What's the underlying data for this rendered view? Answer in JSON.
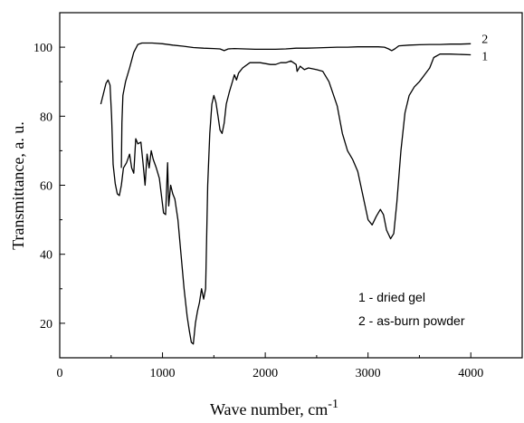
{
  "chart_data": {
    "type": "line",
    "xlabel": "Wave number, cm",
    "xlabel_sup": "-1",
    "ylabel": "Transmittance, a. u.",
    "xlim": [
      0,
      4500
    ],
    "ylim": [
      10,
      110
    ],
    "x_ticks": [
      0,
      1000,
      2000,
      3000,
      4000
    ],
    "x_tick_labels": [
      "0",
      "1000",
      "2000",
      "3000",
      "4000"
    ],
    "y_ticks": [
      20,
      40,
      60,
      80,
      100
    ],
    "y_tick_labels": [
      "20",
      "40",
      "60",
      "80",
      "100"
    ],
    "grid": false,
    "legend": {
      "position": "bottom-right",
      "entries": [
        "1 - dried gel",
        "2 - as-burn powder"
      ]
    },
    "series": [
      {
        "name": "1",
        "label_y": 97.5,
        "points": [
          [
            400,
            83.5
          ],
          [
            450,
            89.5
          ],
          [
            470,
            90.5
          ],
          [
            490,
            89.0
          ],
          [
            505,
            80.0
          ],
          [
            520,
            66.0
          ],
          [
            540,
            60.5
          ],
          [
            560,
            57.5
          ],
          [
            580,
            57.0
          ],
          [
            600,
            60.0
          ],
          [
            620,
            65.0
          ],
          [
            650,
            66.5
          ],
          [
            680,
            69.0
          ],
          [
            700,
            65.0
          ],
          [
            720,
            63.5
          ],
          [
            740,
            73.5
          ],
          [
            760,
            72.0
          ],
          [
            790,
            72.5
          ],
          [
            810,
            66.5
          ],
          [
            830,
            60.0
          ],
          [
            850,
            69.0
          ],
          [
            870,
            65.0
          ],
          [
            890,
            70.0
          ],
          [
            910,
            67.5
          ],
          [
            940,
            65.0
          ],
          [
            970,
            62.0
          ],
          [
            990,
            57.0
          ],
          [
            1010,
            52.0
          ],
          [
            1030,
            51.5
          ],
          [
            1050,
            66.5
          ],
          [
            1060,
            54.0
          ],
          [
            1080,
            60.0
          ],
          [
            1100,
            57.5
          ],
          [
            1120,
            56.0
          ],
          [
            1150,
            50.0
          ],
          [
            1180,
            40.0
          ],
          [
            1210,
            30.0
          ],
          [
            1240,
            22.0
          ],
          [
            1260,
            18.0
          ],
          [
            1280,
            14.5
          ],
          [
            1300,
            14.0
          ],
          [
            1320,
            20.0
          ],
          [
            1340,
            23.5
          ],
          [
            1360,
            26.0
          ],
          [
            1380,
            30.0
          ],
          [
            1400,
            27.0
          ],
          [
            1420,
            30.0
          ],
          [
            1440,
            60.0
          ],
          [
            1460,
            75.0
          ],
          [
            1480,
            83.5
          ],
          [
            1500,
            86.0
          ],
          [
            1520,
            84.0
          ],
          [
            1540,
            80.0
          ],
          [
            1560,
            76.0
          ],
          [
            1580,
            75.0
          ],
          [
            1600,
            78.0
          ],
          [
            1620,
            83.5
          ],
          [
            1650,
            87.0
          ],
          [
            1680,
            90.0
          ],
          [
            1700,
            92.0
          ],
          [
            1720,
            90.5
          ],
          [
            1740,
            92.5
          ],
          [
            1780,
            94.0
          ],
          [
            1850,
            95.5
          ],
          [
            1950,
            95.5
          ],
          [
            2050,
            95.0
          ],
          [
            2100,
            95.0
          ],
          [
            2150,
            95.5
          ],
          [
            2200,
            95.5
          ],
          [
            2250,
            96.0
          ],
          [
            2300,
            95.0
          ],
          [
            2310,
            93.0
          ],
          [
            2340,
            94.5
          ],
          [
            2380,
            93.5
          ],
          [
            2420,
            94.0
          ],
          [
            2500,
            93.5
          ],
          [
            2560,
            93.0
          ],
          [
            2620,
            90.0
          ],
          [
            2700,
            83.0
          ],
          [
            2750,
            75.0
          ],
          [
            2800,
            70.0
          ],
          [
            2850,
            67.5
          ],
          [
            2900,
            64.0
          ],
          [
            2950,
            57.0
          ],
          [
            3000,
            50.0
          ],
          [
            3040,
            48.5
          ],
          [
            3080,
            51.0
          ],
          [
            3120,
            53.0
          ],
          [
            3150,
            51.5
          ],
          [
            3180,
            47.0
          ],
          [
            3220,
            44.5
          ],
          [
            3250,
            46.0
          ],
          [
            3280,
            55.0
          ],
          [
            3320,
            70.0
          ],
          [
            3360,
            81.0
          ],
          [
            3400,
            86.0
          ],
          [
            3450,
            88.5
          ],
          [
            3500,
            90.0
          ],
          [
            3550,
            92.0
          ],
          [
            3600,
            94.0
          ],
          [
            3640,
            97.0
          ],
          [
            3700,
            98.0
          ],
          [
            3800,
            98.0
          ],
          [
            4000,
            97.8
          ]
        ]
      },
      {
        "name": "2",
        "label_y": 102.5,
        "points": [
          [
            600,
            65.0
          ],
          [
            605,
            78.0
          ],
          [
            615,
            86.0
          ],
          [
            640,
            90.0
          ],
          [
            680,
            94.0
          ],
          [
            720,
            98.5
          ],
          [
            760,
            100.8
          ],
          [
            800,
            101.2
          ],
          [
            900,
            101.2
          ],
          [
            1000,
            101.0
          ],
          [
            1100,
            100.6
          ],
          [
            1200,
            100.3
          ],
          [
            1300,
            99.9
          ],
          [
            1400,
            99.7
          ],
          [
            1500,
            99.6
          ],
          [
            1560,
            99.5
          ],
          [
            1600,
            99.0
          ],
          [
            1640,
            99.5
          ],
          [
            1700,
            99.6
          ],
          [
            1800,
            99.5
          ],
          [
            1900,
            99.4
          ],
          [
            2000,
            99.4
          ],
          [
            2100,
            99.4
          ],
          [
            2200,
            99.5
          ],
          [
            2300,
            99.7
          ],
          [
            2400,
            99.7
          ],
          [
            2500,
            99.8
          ],
          [
            2600,
            99.9
          ],
          [
            2700,
            100.0
          ],
          [
            2800,
            100.0
          ],
          [
            2900,
            100.1
          ],
          [
            3000,
            100.1
          ],
          [
            3100,
            100.1
          ],
          [
            3160,
            100.0
          ],
          [
            3200,
            99.5
          ],
          [
            3230,
            99.0
          ],
          [
            3260,
            99.5
          ],
          [
            3300,
            100.4
          ],
          [
            3400,
            100.6
          ],
          [
            3500,
            100.7
          ],
          [
            3600,
            100.8
          ],
          [
            3700,
            100.8
          ],
          [
            3800,
            100.9
          ],
          [
            3900,
            100.9
          ],
          [
            4000,
            101.0
          ]
        ]
      }
    ]
  }
}
